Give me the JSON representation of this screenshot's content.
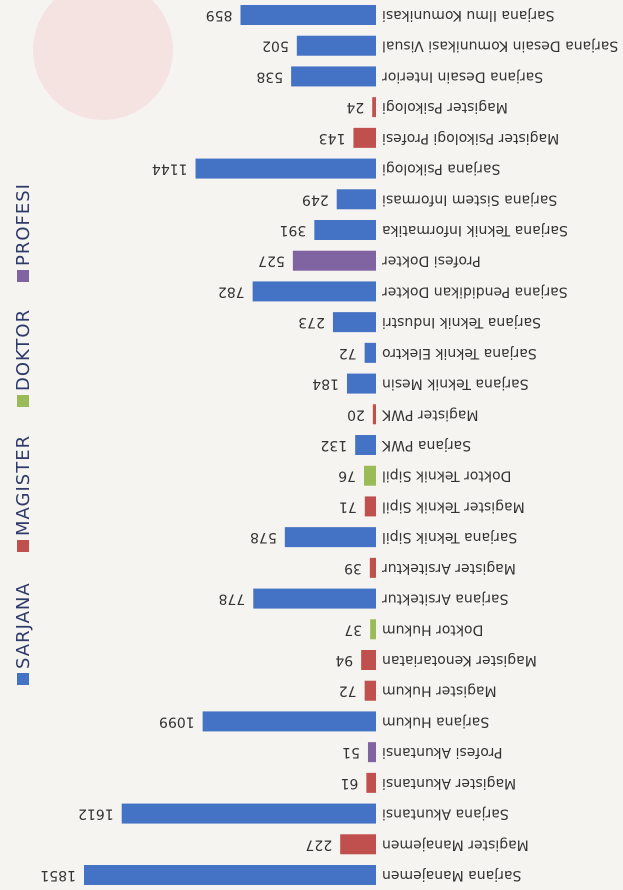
{
  "chart_data": {
    "type": "bar",
    "orientation": "horizontal",
    "categories": [
      "Sarjana Manajemen",
      "Magister Manajemen",
      "Sarjana Akuntansi",
      "Magister Akuntansi",
      "Profesi Akuntansi",
      "Sarjana  Hukum",
      "Magister  Hukum",
      "Magister Kenotariatan",
      "Doktor  Hukum",
      "Sarjana Arsitektur",
      "Magister Arsitektur",
      "Sarjana Teknik Sipil",
      "Magister Teknik Sipil",
      "Doktor Teknik Sipil",
      "Sarjana PWK",
      "Magister PWK",
      "Sarjana Teknik Mesin",
      "Sarjana Teknik Elektro",
      "Sarjana Teknik Industri",
      "Sarjana Pendidikan Dokter",
      "Profesi Dokter",
      "Sarjana Teknik Informatika",
      "Sarjana Sistem Informasi",
      "Sarjana Psikologi",
      "Magister Psikologi Profesi",
      "Magister Psikologi",
      "Sarjana Desain Interior",
      "Sarjana Desain Komunikasi Visual",
      "Sarjana Ilmu Komunikasi"
    ],
    "series": [
      {
        "name": "SARJANA",
        "color": "#4472c4",
        "values": [
          1851,
          null,
          1612,
          null,
          null,
          1099,
          null,
          null,
          null,
          778,
          null,
          578,
          null,
          null,
          132,
          null,
          184,
          72,
          273,
          782,
          null,
          391,
          249,
          1144,
          null,
          null,
          538,
          502,
          859
        ]
      },
      {
        "name": "MAGISTER",
        "color": "#c0504d",
        "values": [
          null,
          227,
          null,
          61,
          null,
          null,
          72,
          94,
          null,
          null,
          39,
          null,
          71,
          null,
          null,
          20,
          null,
          null,
          null,
          null,
          null,
          null,
          null,
          null,
          143,
          24,
          null,
          null,
          null
        ]
      },
      {
        "name": "DOKTOR",
        "color": "#9bbb59",
        "values": [
          null,
          null,
          null,
          null,
          null,
          null,
          null,
          null,
          37,
          null,
          null,
          null,
          null,
          76,
          null,
          null,
          null,
          null,
          null,
          null,
          null,
          null,
          null,
          null,
          null,
          null,
          null,
          null,
          null
        ]
      },
      {
        "name": "PROFESI",
        "color": "#8064a2",
        "values": [
          null,
          null,
          null,
          null,
          51,
          null,
          null,
          null,
          null,
          null,
          null,
          null,
          null,
          null,
          null,
          null,
          null,
          null,
          null,
          null,
          527,
          null,
          null,
          null,
          null,
          null,
          null,
          null,
          null
        ]
      }
    ],
    "legend": "right",
    "rotation": 180
  }
}
